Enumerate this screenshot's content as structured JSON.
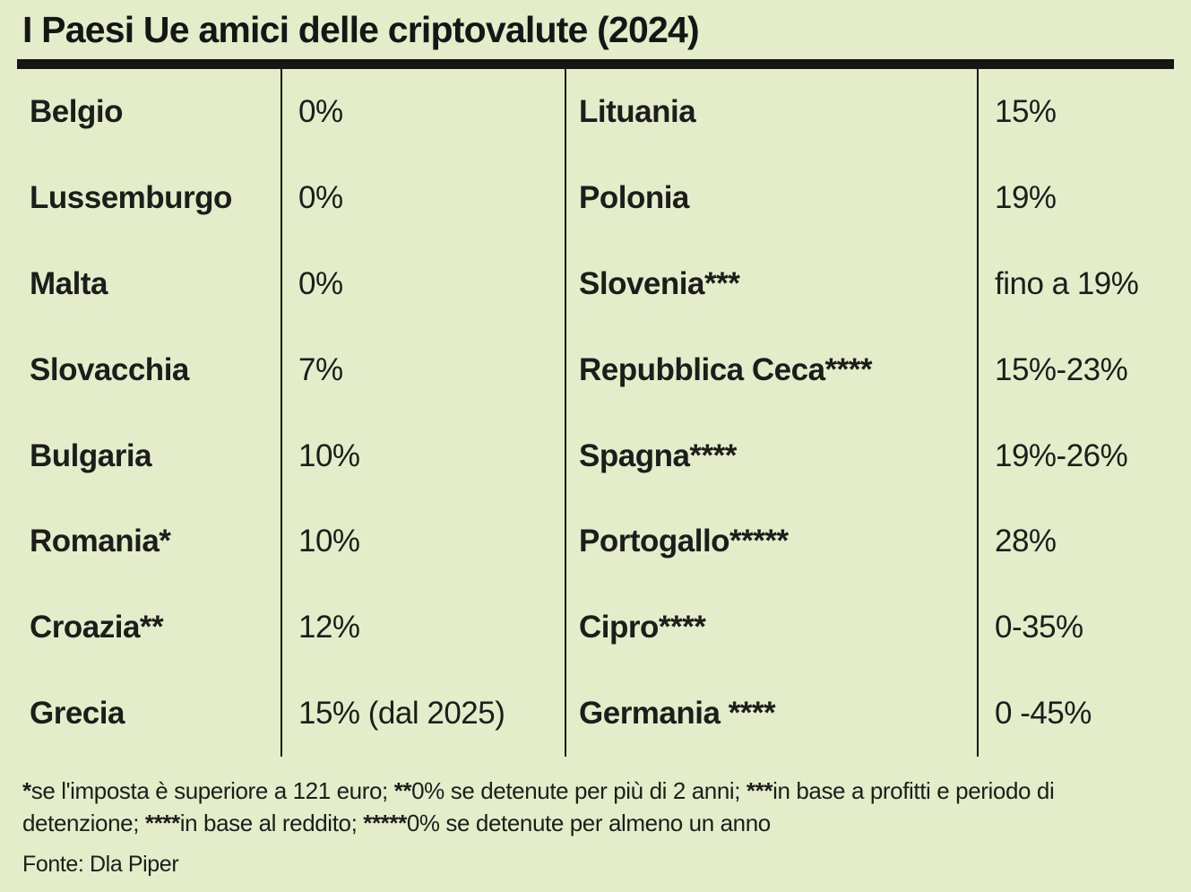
{
  "title": "I Paesi Ue amici delle criptovalute (2024)",
  "colors": {
    "background": "#e5ecca",
    "row_light_country": "#fcfdf3",
    "row_light_value": "#f0f4db",
    "row_green_country": "#dce6a1",
    "row_green_value": "#cdda73",
    "bar_and_text": "#161616"
  },
  "table": {
    "rows": [
      {
        "left_country": "Belgio",
        "left_value": "0%",
        "right_country": "Lituania",
        "right_value": "15%"
      },
      {
        "left_country": "Lussemburgo",
        "left_value": "0%",
        "right_country": "Polonia",
        "right_value": "19%"
      },
      {
        "left_country": "Malta",
        "left_value": "0%",
        "right_country": "Slovenia***",
        "right_value": "fino a 19%"
      },
      {
        "left_country": "Slovacchia",
        "left_value": "7%",
        "right_country": "Repubblica Ceca****",
        "right_value": "15%-23%"
      },
      {
        "left_country": "Bulgaria",
        "left_value": "10%",
        "right_country": "Spagna****",
        "right_value": "19%-26%"
      },
      {
        "left_country": "Romania*",
        "left_value": "10%",
        "right_country": "Portogallo*****",
        "right_value": "28%"
      },
      {
        "left_country": "Croazia**",
        "left_value": "12%",
        "right_country": "Cipro****",
        "right_value": "0-35%"
      },
      {
        "left_country": "Grecia",
        "left_value": "15% (dal 2025)",
        "right_country": "Germania ****",
        "right_value": "0 -45%"
      }
    ]
  },
  "footnote": {
    "segments": [
      {
        "text": "*",
        "bold": true
      },
      {
        "text": "se l'imposta è superiore a 121 euro; ",
        "bold": false
      },
      {
        "text": "**",
        "bold": true
      },
      {
        "text": "0% se detenute per più di 2 anni; ",
        "bold": false
      },
      {
        "text": "***",
        "bold": true
      },
      {
        "text": "in base a profitti e periodo di detenzione; ",
        "bold": false
      },
      {
        "text": "****",
        "bold": true
      },
      {
        "text": "in base al reddito; ",
        "bold": false
      },
      {
        "text": "*****",
        "bold": true
      },
      {
        "text": "0% se detenute per almeno un anno",
        "bold": false
      }
    ]
  },
  "source": "Fonte: Dla Piper",
  "chart_data": {
    "type": "table",
    "title": "I Paesi Ue amici delle criptovalute (2024)",
    "columns": [
      "Paese",
      "Aliquota"
    ],
    "rows": [
      [
        "Belgio",
        "0%"
      ],
      [
        "Lussemburgo",
        "0%"
      ],
      [
        "Malta",
        "0%"
      ],
      [
        "Slovacchia",
        "7%"
      ],
      [
        "Bulgaria",
        "10%"
      ],
      [
        "Romania*",
        "10%"
      ],
      [
        "Croazia**",
        "12%"
      ],
      [
        "Grecia",
        "15% (dal 2025)"
      ],
      [
        "Lituania",
        "15%"
      ],
      [
        "Polonia",
        "19%"
      ],
      [
        "Slovenia***",
        "fino a 19%"
      ],
      [
        "Repubblica Ceca****",
        "15%-23%"
      ],
      [
        "Spagna****",
        "19%-26%"
      ],
      [
        "Portogallo*****",
        "28%"
      ],
      [
        "Cipro****",
        "0-35%"
      ],
      [
        "Germania ****",
        "0 -45%"
      ]
    ],
    "footnotes": [
      "*se l'imposta è superiore a 121 euro",
      "**0% se detenute per più di 2 anni",
      "***in base a profitti e periodo di detenzione",
      "****in base al reddito",
      "*****0% se detenute per almeno un anno"
    ],
    "source": "Fonte: Dla Piper"
  }
}
